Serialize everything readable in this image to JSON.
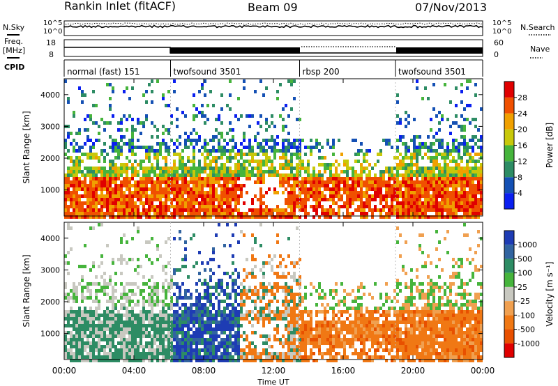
{
  "header": {
    "station": "Rankin Inlet (fitACF)",
    "beam": "Beam 09",
    "date": "07/Nov/2013"
  },
  "strip": {
    "nsky_label": "N.Sky",
    "nsearch_label": "N.Search",
    "noise_ticks": [
      "10^5",
      "10^0"
    ],
    "freq_label": "Freq.",
    "freq_unit": "[MHz]",
    "freq_ticks": [
      "18",
      "8"
    ],
    "nave_label": "Nave",
    "nave_ticks": [
      "60",
      "0"
    ],
    "cpid_label": "CPID"
  },
  "chart_data": [
    {
      "type": "timeline",
      "name": "CPID",
      "segments": [
        {
          "label": "normal (fast) 151",
          "start": 0.0,
          "end": 6.1
        },
        {
          "label": "twofsound 3501",
          "start": 6.1,
          "end": 13.5
        },
        {
          "label": "rbsp 200",
          "start": 13.5,
          "end": 19.0
        },
        {
          "label": "twofsound 3501",
          "start": 19.0,
          "end": 24.0
        }
      ]
    },
    {
      "type": "heatmap",
      "title": "Power",
      "xlabel": "",
      "ylabel": "Slant Range [km]",
      "xlim": [
        0,
        24
      ],
      "ylim": [
        180,
        4500
      ],
      "x_ticks": [
        "00:00",
        "04:00",
        "08:00",
        "12:00",
        "16:00",
        "20:00",
        "00:00"
      ],
      "y_ticks": [
        "1000",
        "2000",
        "3000",
        "4000"
      ],
      "colorbar": {
        "label": "Power [dB]",
        "ticks": [
          "4",
          "8",
          "12",
          "16",
          "20",
          "24",
          "28"
        ],
        "colors": [
          "#0a1ff0",
          "#1450b4",
          "#2d8c64",
          "#46b43c",
          "#c8c80a",
          "#f0a000",
          "#f05000",
          "#e00000"
        ]
      }
    },
    {
      "type": "heatmap",
      "title": "Velocity",
      "xlabel": "Time UT",
      "ylabel": "Slant Range [km]",
      "xlim": [
        0,
        24
      ],
      "ylim": [
        180,
        4500
      ],
      "x_ticks": [
        "00:00",
        "04:00",
        "08:00",
        "12:00",
        "16:00",
        "20:00",
        "00:00"
      ],
      "y_ticks": [
        "1000",
        "2000",
        "3000",
        "4000"
      ],
      "colorbar": {
        "label": "Velocity [m s⁻¹]",
        "ticks": [
          "1000",
          "500",
          "100",
          "25",
          "-25",
          "-100",
          "-500",
          "-1000"
        ],
        "colors": [
          "#1e3cb4",
          "#3264a0",
          "#2d8c64",
          "#46b43c",
          "#c8c8c0",
          "#f0a050",
          "#f07814",
          "#e85000",
          "#e00000"
        ]
      }
    }
  ]
}
